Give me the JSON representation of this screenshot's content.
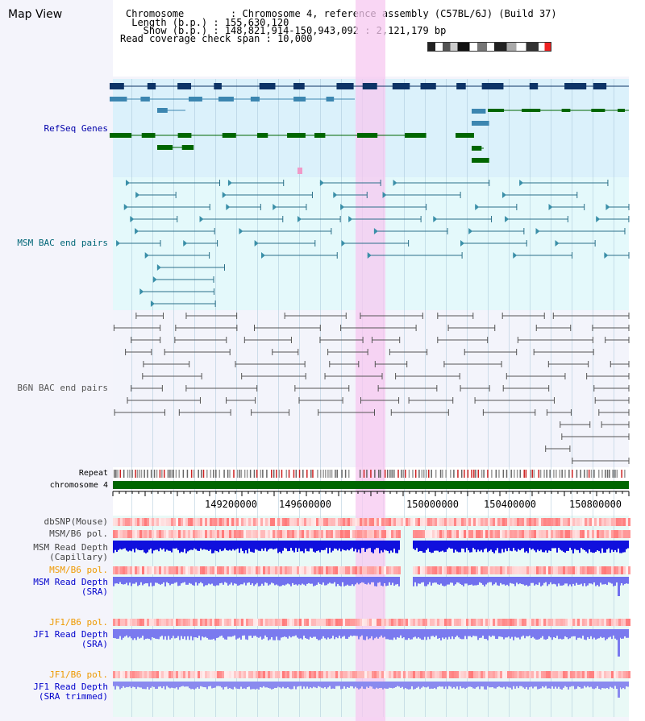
{
  "title": "Map View",
  "header": {
    "chromosome": "Chromosome        : Chromosome 4, reference assembly (C57BL/6J) (Build 37)",
    "length": " Length (b.p.) : 155,630,120",
    "show": "   Show (b.p.) : 148,821,914-150,943,092 : 2,121,179 bp",
    "coverage": "Read coverage check span : 10,000"
  },
  "tracks": {
    "refseq": "RefSeq Genes",
    "msm_bac": "MSM BAC end pairs",
    "b6n_bac": "B6N BAC end pairs",
    "repeat": "Repeat",
    "chromosome": "chromosome 4",
    "dbsnp": "dbSNP(Mouse)",
    "msm_pol": "MSM/B6 pol.",
    "msm_depth_cap_1": "MSM Read Depth",
    "msm_depth_cap_2": "(Capillary)",
    "msm_pol2": "MSM/B6 pol.",
    "msm_depth_sra_1": "MSM Read Depth",
    "msm_depth_sra_2": "(SRA)",
    "jf1_pol": "JF1/B6 pol.",
    "jf1_depth_sra_1": "JF1 Read Depth",
    "jf1_depth_sra_2": "(SRA)",
    "jf1_pol2": "JF1/B6 pol.",
    "jf1_depth_trim_1": "JF1 Read Depth",
    "jf1_depth_trim_2": "(SRA trimmed)"
  },
  "axis_ticks": [
    "149200000",
    "149600000",
    "150000000",
    "150400000",
    "150800000"
  ],
  "colors": {
    "refseq_bg": "#dbf1fb",
    "msm_bg": "#e4f9fb",
    "b6n_bg": "#f3f4fb",
    "highlight": "#f7d6f3",
    "refseq_label": "#0000aa",
    "msm_label": "#006677",
    "b6n_label": "#555555",
    "pol_orange": "#ee9900",
    "depth_blue": "#0000cc",
    "chromosome_bar": "#006600"
  }
}
